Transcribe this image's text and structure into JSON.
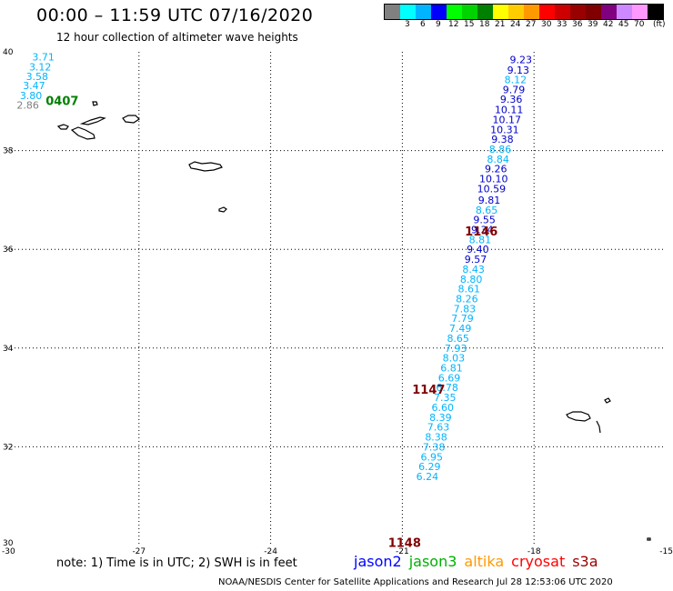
{
  "header": {
    "title": "00:00 – 11:59 UTC 07/16/2020",
    "subtitle": "12 hour collection of altimeter wave heights"
  },
  "colorbar": {
    "unit_label": "(ft)",
    "colors": [
      "#808080",
      "#00ffff",
      "#00b4ff",
      "#0000ff",
      "#00ff00",
      "#00d400",
      "#008000",
      "#ffff00",
      "#ffcc00",
      "#ff9900",
      "#ff0000",
      "#cc0000",
      "#990000",
      "#800000",
      "#800080",
      "#cc88ff",
      "#ff99ff",
      "#000000"
    ],
    "labels": [
      "3",
      "6",
      "9",
      "12",
      "15",
      "18",
      "21",
      "24",
      "27",
      "30",
      "33",
      "36",
      "39",
      "42",
      "45",
      "70"
    ]
  },
  "map": {
    "lon_range": [
      -30,
      -15
    ],
    "lat_range": [
      30,
      40
    ],
    "lon_ticks": [
      "-30",
      "-27",
      "-24",
      "-21",
      "-18",
      "-15"
    ],
    "lat_ticks": [
      "30",
      "32",
      "34",
      "36",
      "38",
      "40"
    ],
    "track_labels": [
      {
        "text": "0407",
        "lon": -28.75,
        "lat": 39.0,
        "color": "#008000"
      },
      {
        "text": "1146",
        "lon": -19.2,
        "lat": 36.35,
        "color": "#800000"
      },
      {
        "text": "1147",
        "lon": -20.4,
        "lat": 33.15,
        "color": "#800000"
      },
      {
        "text": "1148",
        "lon": -20.95,
        "lat": 30.05,
        "color": "#800000"
      }
    ],
    "tracks": [
      {
        "name": "0407",
        "points": [
          {
            "v": "3.71",
            "lon": -29.18,
            "lat": 39.9,
            "color": "#00b4ff"
          },
          {
            "v": "3.12",
            "lon": -29.25,
            "lat": 39.7,
            "color": "#00b4ff"
          },
          {
            "v": "3.58",
            "lon": -29.32,
            "lat": 39.5,
            "color": "#00b4ff"
          },
          {
            "v": "3.47",
            "lon": -29.39,
            "lat": 39.32,
            "color": "#00b4ff"
          },
          {
            "v": "3.80",
            "lon": -29.46,
            "lat": 39.12,
            "color": "#00b4ff"
          },
          {
            "v": "2.86",
            "lon": -29.53,
            "lat": 38.92,
            "color": "#808080"
          }
        ]
      },
      {
        "name": "1146-1148",
        "points": [
          {
            "v": "9.23",
            "lon": -18.3,
            "lat": 39.84,
            "color": "#0000cc"
          },
          {
            "v": "9.13",
            "lon": -18.36,
            "lat": 39.63,
            "color": "#0000cc"
          },
          {
            "v": "8.12",
            "lon": -18.42,
            "lat": 39.44,
            "color": "#00b4ff"
          },
          {
            "v": "9.79",
            "lon": -18.46,
            "lat": 39.24,
            "color": "#0000cc"
          },
          {
            "v": "9.36",
            "lon": -18.52,
            "lat": 39.04,
            "color": "#0000cc"
          },
          {
            "v": "10.11",
            "lon": -18.57,
            "lat": 38.83,
            "color": "#0000cc"
          },
          {
            "v": "10.17",
            "lon": -18.62,
            "lat": 38.63,
            "color": "#0000cc"
          },
          {
            "v": "10.31",
            "lon": -18.67,
            "lat": 38.43,
            "color": "#0000cc"
          },
          {
            "v": "9.38",
            "lon": -18.72,
            "lat": 38.23,
            "color": "#0000cc"
          },
          {
            "v": "8.86",
            "lon": -18.77,
            "lat": 38.03,
            "color": "#00b4ff"
          },
          {
            "v": "8.84",
            "lon": -18.82,
            "lat": 37.83,
            "color": "#00b4ff"
          },
          {
            "v": "9.26",
            "lon": -18.87,
            "lat": 37.63,
            "color": "#0000cc"
          },
          {
            "v": "10.10",
            "lon": -18.92,
            "lat": 37.43,
            "color": "#0000cc"
          },
          {
            "v": "10.59",
            "lon": -18.97,
            "lat": 37.23,
            "color": "#0000cc"
          },
          {
            "v": "9.81",
            "lon": -19.02,
            "lat": 37.0,
            "color": "#0000cc"
          },
          {
            "v": "8.65",
            "lon": -19.08,
            "lat": 36.8,
            "color": "#00b4ff"
          },
          {
            "v": "9.55",
            "lon": -19.13,
            "lat": 36.6,
            "color": "#0000cc"
          },
          {
            "v": "9.34",
            "lon": -19.18,
            "lat": 36.4,
            "color": "#0000cc"
          },
          {
            "v": "8.81",
            "lon": -19.23,
            "lat": 36.2,
            "color": "#00b4ff"
          },
          {
            "v": "9.40",
            "lon": -19.28,
            "lat": 36.0,
            "color": "#0000cc"
          },
          {
            "v": "9.57",
            "lon": -19.33,
            "lat": 35.8,
            "color": "#0000cc"
          },
          {
            "v": "8.43",
            "lon": -19.38,
            "lat": 35.6,
            "color": "#00b4ff"
          },
          {
            "v": "8.80",
            "lon": -19.43,
            "lat": 35.4,
            "color": "#00b4ff"
          },
          {
            "v": "8.61",
            "lon": -19.48,
            "lat": 35.2,
            "color": "#00b4ff"
          },
          {
            "v": "8.26",
            "lon": -19.53,
            "lat": 35.0,
            "color": "#00b4ff"
          },
          {
            "v": "7.83",
            "lon": -19.58,
            "lat": 34.8,
            "color": "#00b4ff"
          },
          {
            "v": "7.79",
            "lon": -19.63,
            "lat": 34.6,
            "color": "#00b4ff"
          },
          {
            "v": "7.49",
            "lon": -19.68,
            "lat": 34.4,
            "color": "#00b4ff"
          },
          {
            "v": "8.65",
            "lon": -19.73,
            "lat": 34.2,
            "color": "#00b4ff"
          },
          {
            "v": "7.93",
            "lon": -19.78,
            "lat": 34.0,
            "color": "#00b4ff"
          },
          {
            "v": "8.03",
            "lon": -19.83,
            "lat": 33.8,
            "color": "#00b4ff"
          },
          {
            "v": "6.81",
            "lon": -19.88,
            "lat": 33.6,
            "color": "#00b4ff"
          },
          {
            "v": "6.69",
            "lon": -19.93,
            "lat": 33.4,
            "color": "#00b4ff"
          },
          {
            "v": "6.78",
            "lon": -19.98,
            "lat": 33.2,
            "color": "#00b4ff"
          },
          {
            "v": "7.35",
            "lon": -20.03,
            "lat": 33.0,
            "color": "#00b4ff"
          },
          {
            "v": "6.60",
            "lon": -20.08,
            "lat": 32.8,
            "color": "#00b4ff"
          },
          {
            "v": "8.39",
            "lon": -20.13,
            "lat": 32.6,
            "color": "#00b4ff"
          },
          {
            "v": "7.63",
            "lon": -20.18,
            "lat": 32.4,
            "color": "#00b4ff"
          },
          {
            "v": "8.38",
            "lon": -20.23,
            "lat": 32.2,
            "color": "#00b4ff"
          },
          {
            "v": "7.38",
            "lon": -20.28,
            "lat": 32.0,
            "color": "#00b4ff"
          },
          {
            "v": "6.95",
            "lon": -20.33,
            "lat": 31.8,
            "color": "#00b4ff"
          },
          {
            "v": "6.29",
            "lon": -20.38,
            "lat": 31.6,
            "color": "#00b4ff"
          },
          {
            "v": "6.24",
            "lon": -20.43,
            "lat": 31.4,
            "color": "#00b4ff"
          }
        ]
      }
    ]
  },
  "footer": {
    "note": "note: 1) Time is in UTC; 2) SWH is in feet",
    "legend": [
      {
        "label": "jason2",
        "color": "#0000ff"
      },
      {
        "label": "jason3",
        "color": "#00b000"
      },
      {
        "label": "altika",
        "color": "#ff9900"
      },
      {
        "label": "cryosat",
        "color": "#ff0000"
      },
      {
        "label": "s3a",
        "color": "#990000"
      }
    ],
    "credit": "NOAA/NESDIS Center for Satellite Applications and Research   Jul 28 12:53:06 UTC 2020"
  }
}
